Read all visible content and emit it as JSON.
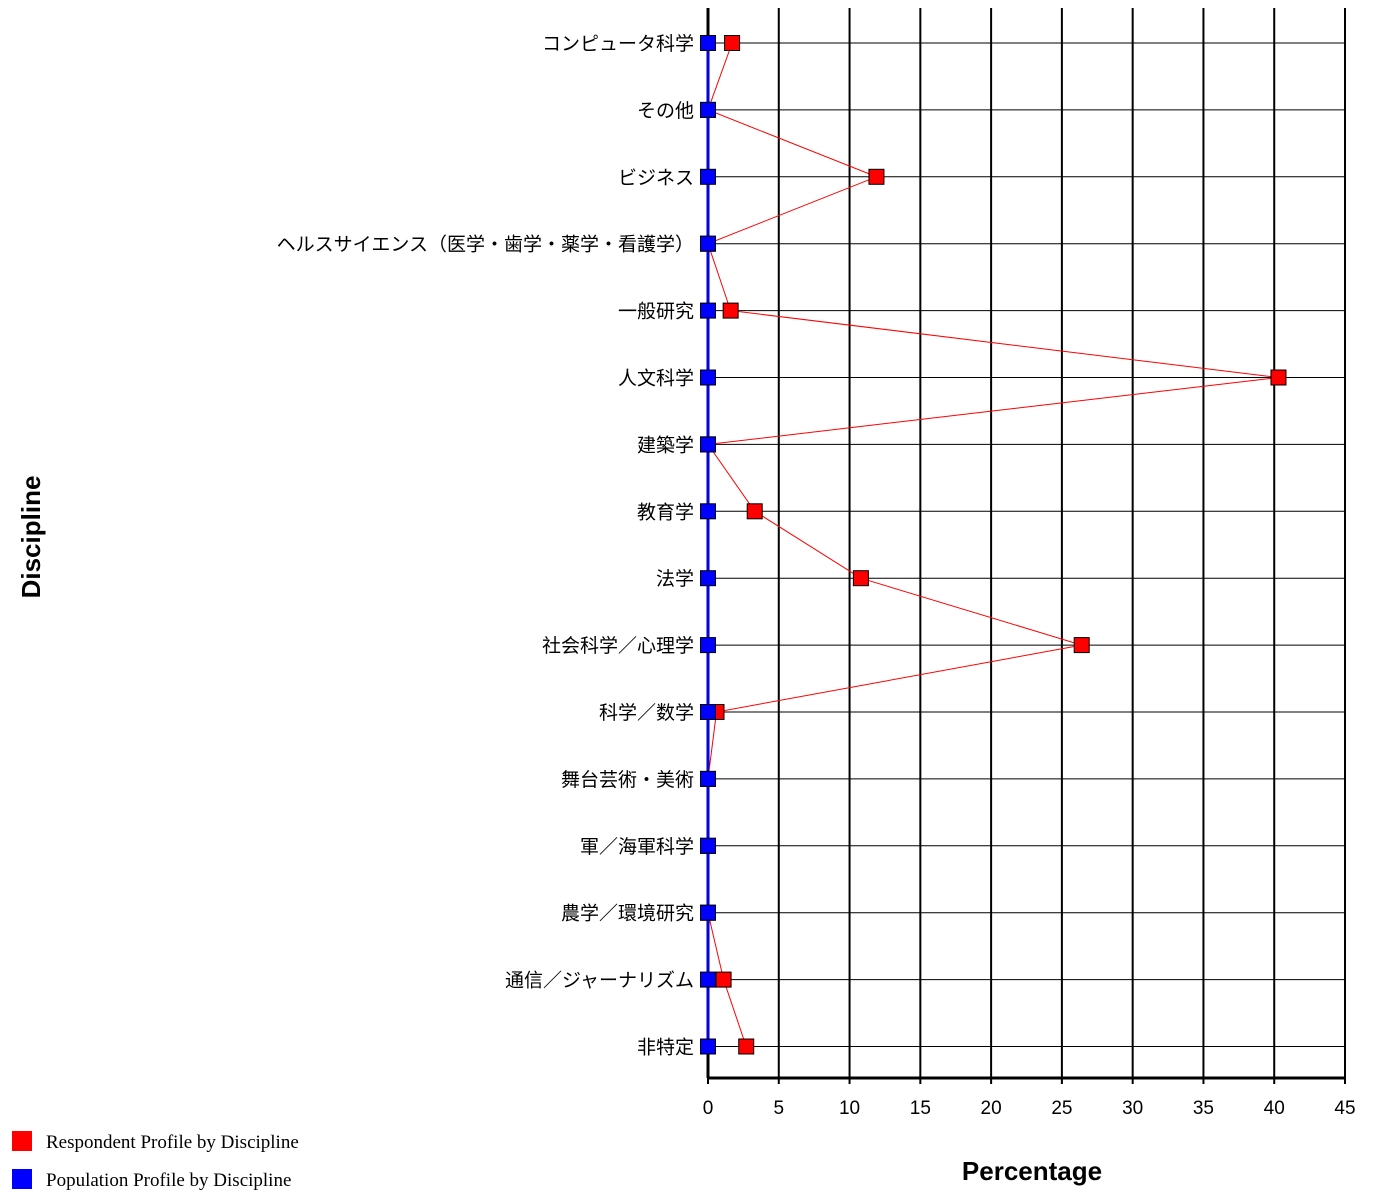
{
  "chart_data": {
    "type": "line",
    "orientation": "horizontal",
    "categories": [
      "コンピュータ科学",
      "その他",
      "ビジネス",
      "ヘルスサイエンス（医学・歯学・薬学・看護学）",
      "一般研究",
      "人文科学",
      "建築学",
      "教育学",
      "法学",
      "社会科学／心理学",
      "科学／数学",
      "舞台芸術・美術",
      "軍／海軍科学",
      "農学／環境研究",
      "通信／ジャーナリズム",
      "非特定"
    ],
    "series": [
      {
        "name": "Respondent Profile by Discipline",
        "color": "#ff0000",
        "values": [
          1.7,
          0,
          11.9,
          0,
          1.6,
          40.3,
          0,
          3.3,
          10.8,
          26.4,
          0.6,
          0,
          0,
          0,
          1.1,
          2.7
        ]
      },
      {
        "name": "Population Profile by Discipline",
        "color": "#0000ff",
        "values": [
          0,
          0,
          0,
          0,
          0,
          0,
          0,
          0,
          0,
          0,
          0,
          0,
          0,
          0,
          0,
          0
        ]
      }
    ],
    "xlabel": "Percentage",
    "ylabel": "Discipline",
    "xlim": [
      0,
      45
    ],
    "xticks": [
      0,
      5,
      10,
      15,
      20,
      25,
      30,
      35,
      40,
      45
    ],
    "grid": true,
    "legend_position": "bottom-left"
  }
}
